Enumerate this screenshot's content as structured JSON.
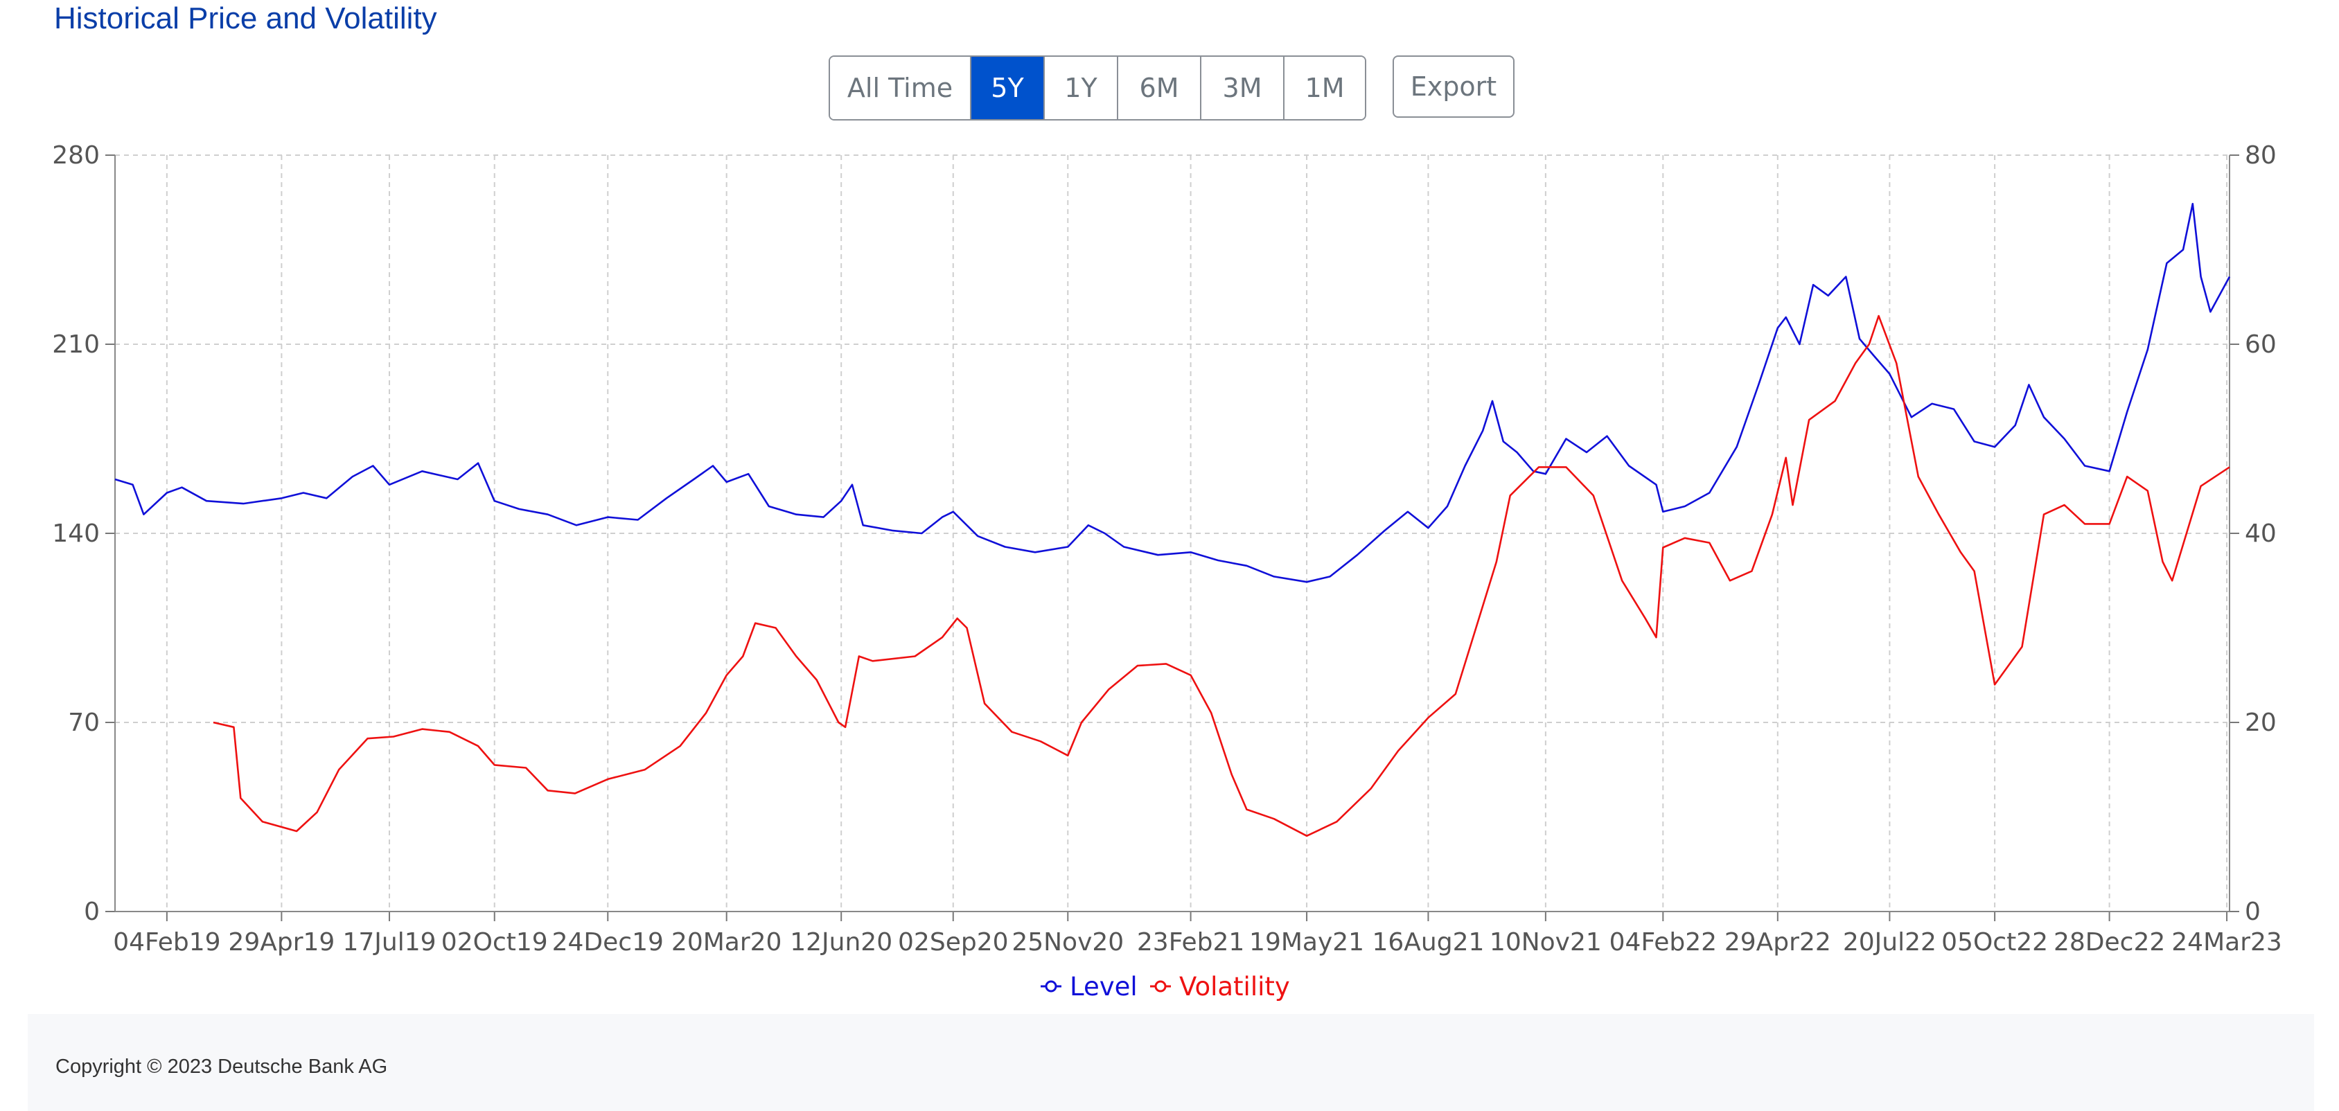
{
  "page_title": "Historical Price and Volatility",
  "range_buttons": [
    {
      "label": "All Time",
      "active": false
    },
    {
      "label": "5Y",
      "active": true
    },
    {
      "label": "1Y",
      "active": false
    },
    {
      "label": "6M",
      "active": false
    },
    {
      "label": "3M",
      "active": false
    },
    {
      "label": "1M",
      "active": false
    }
  ],
  "export_label": "Export",
  "colors": {
    "level": "#1010d8",
    "volatility": "#ee1111",
    "accent": "#0052cc"
  },
  "chart_data": {
    "type": "line",
    "x_tick_labels": [
      "04Feb19",
      "29Apr19",
      "17Jul19",
      "02Oct19",
      "24Dec19",
      "20Mar20",
      "12Jun20",
      "02Sep20",
      "25Nov20",
      "23Feb21",
      "19May21",
      "16Aug21",
      "10Nov21",
      "04Feb22",
      "29Apr22",
      "20Jul22",
      "05Oct22",
      "28Dec22",
      "24Mar23"
    ],
    "x_range": [
      "2018-12-28",
      "2023-03-26"
    ],
    "y_left": {
      "ticks": [
        0,
        70,
        140,
        210,
        280
      ],
      "ylim": [
        0,
        280
      ]
    },
    "y_right": {
      "ticks": [
        0,
        20,
        40,
        60,
        80
      ],
      "ylim": [
        0,
        80
      ]
    },
    "grid": true,
    "legend_position": "bottom-center",
    "series": [
      {
        "name": "Level",
        "axis": "left",
        "points": [
          [
            "2018-12-28",
            160
          ],
          [
            "2019-01-10",
            158
          ],
          [
            "2019-01-18",
            147
          ],
          [
            "2019-02-04",
            155
          ],
          [
            "2019-02-15",
            157
          ],
          [
            "2019-03-05",
            152
          ],
          [
            "2019-04-01",
            151
          ],
          [
            "2019-04-29",
            153
          ],
          [
            "2019-05-15",
            155
          ],
          [
            "2019-06-01",
            153
          ],
          [
            "2019-06-20",
            161
          ],
          [
            "2019-07-05",
            165
          ],
          [
            "2019-07-17",
            158
          ],
          [
            "2019-08-10",
            163
          ],
          [
            "2019-09-05",
            160
          ],
          [
            "2019-09-20",
            166
          ],
          [
            "2019-10-02",
            152
          ],
          [
            "2019-10-20",
            149
          ],
          [
            "2019-11-10",
            147
          ],
          [
            "2019-12-01",
            143
          ],
          [
            "2019-12-24",
            146
          ],
          [
            "2020-01-15",
            145
          ],
          [
            "2020-02-05",
            153
          ],
          [
            "2020-02-25",
            160
          ],
          [
            "2020-03-10",
            165
          ],
          [
            "2020-03-20",
            159
          ],
          [
            "2020-04-05",
            162
          ],
          [
            "2020-04-20",
            150
          ],
          [
            "2020-05-10",
            147
          ],
          [
            "2020-05-30",
            146
          ],
          [
            "2020-06-12",
            152
          ],
          [
            "2020-06-20",
            158
          ],
          [
            "2020-06-28",
            143
          ],
          [
            "2020-07-20",
            141
          ],
          [
            "2020-08-10",
            140
          ],
          [
            "2020-08-25",
            146
          ],
          [
            "2020-09-02",
            148
          ],
          [
            "2020-09-20",
            139
          ],
          [
            "2020-10-10",
            135
          ],
          [
            "2020-11-01",
            133
          ],
          [
            "2020-11-25",
            135
          ],
          [
            "2020-12-10",
            143
          ],
          [
            "2020-12-22",
            140
          ],
          [
            "2021-01-05",
            135
          ],
          [
            "2021-01-30",
            132
          ],
          [
            "2021-02-23",
            133
          ],
          [
            "2021-03-15",
            130
          ],
          [
            "2021-04-05",
            128
          ],
          [
            "2021-04-25",
            124
          ],
          [
            "2021-05-19",
            122
          ],
          [
            "2021-06-05",
            124
          ],
          [
            "2021-06-25",
            132
          ],
          [
            "2021-07-15",
            141
          ],
          [
            "2021-08-01",
            148
          ],
          [
            "2021-08-16",
            142
          ],
          [
            "2021-08-30",
            150
          ],
          [
            "2021-09-12",
            165
          ],
          [
            "2021-09-25",
            178
          ],
          [
            "2021-10-02",
            189
          ],
          [
            "2021-10-10",
            174
          ],
          [
            "2021-10-20",
            170
          ],
          [
            "2021-11-01",
            163
          ],
          [
            "2021-11-10",
            162
          ],
          [
            "2021-11-25",
            175
          ],
          [
            "2021-12-10",
            170
          ],
          [
            "2021-12-25",
            176
          ],
          [
            "2022-01-10",
            165
          ],
          [
            "2022-01-30",
            158
          ],
          [
            "2022-02-04",
            148
          ],
          [
            "2022-02-20",
            150
          ],
          [
            "2022-03-10",
            155
          ],
          [
            "2022-03-30",
            172
          ],
          [
            "2022-04-15",
            195
          ],
          [
            "2022-04-29",
            216
          ],
          [
            "2022-05-05",
            220
          ],
          [
            "2022-05-15",
            210
          ],
          [
            "2022-05-25",
            232
          ],
          [
            "2022-06-05",
            228
          ],
          [
            "2022-06-18",
            235
          ],
          [
            "2022-06-28",
            212
          ],
          [
            "2022-07-08",
            206
          ],
          [
            "2022-07-20",
            199
          ],
          [
            "2022-08-05",
            183
          ],
          [
            "2022-08-20",
            188
          ],
          [
            "2022-09-05",
            186
          ],
          [
            "2022-09-20",
            174
          ],
          [
            "2022-10-05",
            172
          ],
          [
            "2022-10-20",
            180
          ],
          [
            "2022-10-30",
            195
          ],
          [
            "2022-11-10",
            183
          ],
          [
            "2022-11-25",
            175
          ],
          [
            "2022-12-10",
            165
          ],
          [
            "2022-12-28",
            163
          ],
          [
            "2023-01-10",
            185
          ],
          [
            "2023-01-25",
            208
          ],
          [
            "2023-02-08",
            240
          ],
          [
            "2023-02-20",
            245
          ],
          [
            "2023-02-27",
            262
          ],
          [
            "2023-03-05",
            235
          ],
          [
            "2023-03-12",
            222
          ],
          [
            "2023-03-26",
            235
          ]
        ]
      },
      {
        "name": "Volatility",
        "axis": "right",
        "points": [
          [
            "2019-03-10",
            20
          ],
          [
            "2019-03-25",
            19.5
          ],
          [
            "2019-03-30",
            12
          ],
          [
            "2019-04-15",
            9.5
          ],
          [
            "2019-05-10",
            8.5
          ],
          [
            "2019-05-25",
            10.5
          ],
          [
            "2019-06-10",
            15
          ],
          [
            "2019-07-01",
            18.3
          ],
          [
            "2019-07-20",
            18.5
          ],
          [
            "2019-08-10",
            19.3
          ],
          [
            "2019-08-30",
            19
          ],
          [
            "2019-09-20",
            17.5
          ],
          [
            "2019-10-02",
            15.5
          ],
          [
            "2019-10-25",
            15.2
          ],
          [
            "2019-11-10",
            12.8
          ],
          [
            "2019-11-30",
            12.5
          ],
          [
            "2019-12-24",
            14
          ],
          [
            "2020-01-20",
            15
          ],
          [
            "2020-02-15",
            17.5
          ],
          [
            "2020-03-05",
            21
          ],
          [
            "2020-03-20",
            25
          ],
          [
            "2020-04-01",
            27
          ],
          [
            "2020-04-10",
            30.5
          ],
          [
            "2020-04-25",
            30
          ],
          [
            "2020-05-10",
            27
          ],
          [
            "2020-05-25",
            24.5
          ],
          [
            "2020-06-10",
            20
          ],
          [
            "2020-06-15",
            19.5
          ],
          [
            "2020-06-25",
            27
          ],
          [
            "2020-07-05",
            26.5
          ],
          [
            "2020-08-05",
            27
          ],
          [
            "2020-08-25",
            29
          ],
          [
            "2020-09-05",
            31
          ],
          [
            "2020-09-12",
            30
          ],
          [
            "2020-09-25",
            22
          ],
          [
            "2020-10-15",
            19
          ],
          [
            "2020-11-05",
            18
          ],
          [
            "2020-11-25",
            16.5
          ],
          [
            "2020-12-05",
            20
          ],
          [
            "2020-12-25",
            23.5
          ],
          [
            "2021-01-15",
            26
          ],
          [
            "2021-02-05",
            26.2
          ],
          [
            "2021-02-23",
            25
          ],
          [
            "2021-03-10",
            21
          ],
          [
            "2021-03-25",
            14.5
          ],
          [
            "2021-04-05",
            10.8
          ],
          [
            "2021-04-25",
            9.8
          ],
          [
            "2021-05-19",
            8
          ],
          [
            "2021-06-10",
            9.5
          ],
          [
            "2021-07-05",
            13
          ],
          [
            "2021-07-25",
            17
          ],
          [
            "2021-08-16",
            20.5
          ],
          [
            "2021-09-05",
            23
          ],
          [
            "2021-09-20",
            30
          ],
          [
            "2021-10-05",
            37
          ],
          [
            "2021-10-15",
            44
          ],
          [
            "2021-11-05",
            47
          ],
          [
            "2021-11-25",
            47
          ],
          [
            "2021-12-15",
            44
          ],
          [
            "2022-01-05",
            35
          ],
          [
            "2022-01-22",
            31
          ],
          [
            "2022-01-30",
            29
          ],
          [
            "2022-02-04",
            38.5
          ],
          [
            "2022-02-20",
            39.5
          ],
          [
            "2022-03-10",
            39
          ],
          [
            "2022-03-25",
            35
          ],
          [
            "2022-04-10",
            36
          ],
          [
            "2022-04-25",
            42
          ],
          [
            "2022-05-05",
            48
          ],
          [
            "2022-05-10",
            43
          ],
          [
            "2022-05-22",
            52
          ],
          [
            "2022-06-10",
            54
          ],
          [
            "2022-06-25",
            58
          ],
          [
            "2022-07-05",
            60
          ],
          [
            "2022-07-12",
            63
          ],
          [
            "2022-07-25",
            58
          ],
          [
            "2022-08-10",
            46
          ],
          [
            "2022-08-25",
            42
          ],
          [
            "2022-09-10",
            38
          ],
          [
            "2022-09-20",
            36
          ],
          [
            "2022-10-05",
            24
          ],
          [
            "2022-10-25",
            28
          ],
          [
            "2022-11-10",
            42
          ],
          [
            "2022-11-25",
            43
          ],
          [
            "2022-12-10",
            41
          ],
          [
            "2022-12-28",
            41
          ],
          [
            "2023-01-10",
            46
          ],
          [
            "2023-01-25",
            44.5
          ],
          [
            "2023-02-05",
            37
          ],
          [
            "2023-02-12",
            35
          ],
          [
            "2023-03-05",
            45
          ],
          [
            "2023-03-26",
            47
          ]
        ]
      }
    ]
  },
  "footer": {
    "copyright": "Copyright © 2023 Deutsche Bank AG"
  }
}
